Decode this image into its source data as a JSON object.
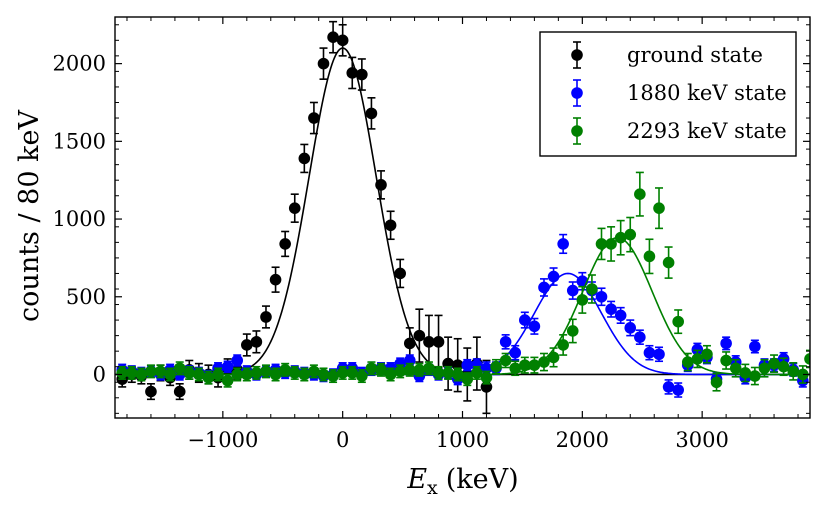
{
  "chart_data": {
    "type": "scatter",
    "xlabel_main": "E",
    "xlabel_sub": "x",
    "xlabel_unit": "(keV)",
    "ylabel": "counts / 80 keV",
    "xlim": [
      -1900,
      3900
    ],
    "ylim": [
      -280,
      2300
    ],
    "xticks": [
      -1000,
      0,
      1000,
      2000,
      3000
    ],
    "yticks": [
      0,
      500,
      1000,
      1500,
      2000
    ],
    "xtick_labels": [
      "−1000",
      "0",
      "1000",
      "2000",
      "3000"
    ],
    "ytick_labels": [
      "0",
      "500",
      "1000",
      "1500",
      "2000"
    ],
    "legend_position": "top-right",
    "series": [
      {
        "name": "ground state",
        "color": "#000000",
        "x": [
          -1840,
          -1760,
          -1680,
          -1600,
          -1520,
          -1440,
          -1360,
          -1280,
          -1200,
          -1120,
          -1040,
          -960,
          -880,
          -800,
          -720,
          -640,
          -560,
          -480,
          -400,
          -320,
          -240,
          -160,
          -80,
          0,
          80,
          160,
          240,
          320,
          400,
          480,
          560,
          640,
          720,
          800,
          880,
          960,
          1040,
          1120,
          1200
        ],
        "y": [
          -30,
          0,
          -10,
          -110,
          10,
          -20,
          -110,
          30,
          10,
          0,
          -20,
          40,
          30,
          190,
          210,
          370,
          610,
          840,
          1070,
          1390,
          1650,
          2000,
          2170,
          2150,
          1940,
          1930,
          1680,
          1220,
          960,
          650,
          200,
          250,
          210,
          210,
          70,
          60,
          0,
          70,
          -80
        ],
        "err": [
          50,
          50,
          50,
          50,
          50,
          50,
          50,
          60,
          60,
          60,
          60,
          60,
          60,
          70,
          70,
          70,
          80,
          80,
          90,
          90,
          100,
          100,
          100,
          100,
          100,
          100,
          100,
          90,
          90,
          90,
          100,
          170,
          170,
          170,
          170,
          170,
          170,
          170,
          170
        ],
        "fit": {
          "amplitude": 2100,
          "center": 0,
          "sigma": 280
        }
      },
      {
        "name": "1880 keV state",
        "color": "#0000ff",
        "x": [
          -1840,
          -1760,
          -1680,
          -1600,
          -1520,
          -1440,
          -1360,
          -1280,
          -1200,
          -1120,
          -1040,
          -960,
          -880,
          -800,
          -720,
          -640,
          -560,
          -480,
          -400,
          -320,
          -240,
          -160,
          -80,
          0,
          80,
          160,
          240,
          320,
          400,
          480,
          560,
          640,
          720,
          800,
          880,
          960,
          1040,
          1120,
          1200,
          1280,
          1360,
          1440,
          1520,
          1600,
          1680,
          1760,
          1840,
          1920,
          2000,
          2080,
          2160,
          2240,
          2320,
          2400,
          2480,
          2560,
          2640,
          2720,
          2800,
          2880,
          2960,
          3040,
          3120,
          3200,
          3280,
          3360,
          3440,
          3520,
          3600,
          3680,
          3760,
          3840
        ],
        "y": [
          30,
          20,
          10,
          20,
          0,
          30,
          0,
          20,
          10,
          -10,
          40,
          50,
          90,
          20,
          0,
          20,
          30,
          10,
          20,
          10,
          0,
          -10,
          0,
          40,
          40,
          10,
          30,
          40,
          40,
          70,
          90,
          -10,
          30,
          0,
          10,
          -30,
          60,
          60,
          40,
          40,
          210,
          140,
          350,
          310,
          560,
          630,
          840,
          540,
          600,
          540,
          500,
          420,
          380,
          300,
          240,
          140,
          130,
          -80,
          -100,
          60,
          160,
          110,
          -30,
          200,
          80,
          -20,
          180,
          60,
          60,
          100,
          30,
          -40
        ],
        "err": [
          35,
          35,
          35,
          35,
          35,
          35,
          35,
          35,
          35,
          35,
          35,
          35,
          35,
          35,
          35,
          35,
          35,
          35,
          35,
          35,
          35,
          35,
          35,
          35,
          35,
          35,
          35,
          35,
          35,
          35,
          35,
          35,
          35,
          35,
          35,
          35,
          35,
          40,
          40,
          40,
          45,
          45,
          50,
          50,
          55,
          55,
          60,
          55,
          55,
          55,
          55,
          50,
          50,
          50,
          45,
          45,
          45,
          45,
          45,
          40,
          40,
          40,
          40,
          40,
          40,
          40,
          40,
          40,
          40,
          40,
          40,
          40
        ],
        "fit": {
          "amplitude": 650,
          "center": 1880,
          "sigma": 280
        }
      },
      {
        "name": "2293 keV state",
        "color": "#008000",
        "x": [
          -1840,
          -1760,
          -1680,
          -1600,
          -1520,
          -1440,
          -1360,
          -1280,
          -1200,
          -1120,
          -1040,
          -960,
          -880,
          -800,
          -720,
          -640,
          -560,
          -480,
          -400,
          -320,
          -240,
          -160,
          -80,
          0,
          80,
          160,
          240,
          320,
          400,
          480,
          560,
          640,
          720,
          800,
          880,
          960,
          1040,
          1120,
          1200,
          1280,
          1360,
          1440,
          1520,
          1600,
          1680,
          1760,
          1840,
          1920,
          2000,
          2080,
          2160,
          2240,
          2320,
          2400,
          2480,
          2560,
          2640,
          2720,
          2800,
          2880,
          2960,
          3040,
          3120,
          3200,
          3280,
          3360,
          3440,
          3520,
          3600,
          3680,
          3760,
          3840,
          3900
        ],
        "y": [
          10,
          10,
          0,
          20,
          20,
          0,
          40,
          10,
          0,
          -20,
          0,
          -40,
          0,
          0,
          10,
          20,
          0,
          30,
          10,
          0,
          20,
          0,
          -10,
          10,
          10,
          -10,
          40,
          30,
          0,
          20,
          30,
          30,
          40,
          10,
          10,
          0,
          -30,
          10,
          -20,
          50,
          90,
          40,
          60,
          60,
          80,
          110,
          190,
          280,
          480,
          550,
          840,
          840,
          880,
          900,
          1160,
          760,
          1070,
          720,
          340,
          80,
          100,
          130,
          -50,
          90,
          40,
          10,
          -10,
          40,
          70,
          50,
          20,
          0,
          100
        ],
        "err": [
          40,
          40,
          40,
          40,
          40,
          40,
          40,
          40,
          40,
          40,
          40,
          40,
          40,
          40,
          40,
          40,
          40,
          40,
          40,
          40,
          40,
          40,
          40,
          40,
          40,
          40,
          40,
          40,
          40,
          40,
          40,
          40,
          40,
          40,
          40,
          40,
          40,
          40,
          40,
          45,
          45,
          45,
          50,
          50,
          55,
          60,
          65,
          75,
          85,
          90,
          100,
          110,
          110,
          110,
          140,
          110,
          130,
          100,
          75,
          55,
          55,
          55,
          55,
          55,
          55,
          55,
          55,
          55,
          55,
          55,
          55,
          55,
          55
        ],
        "fit": {
          "amplitude": 880,
          "center": 2293,
          "sigma": 290
        }
      }
    ]
  }
}
